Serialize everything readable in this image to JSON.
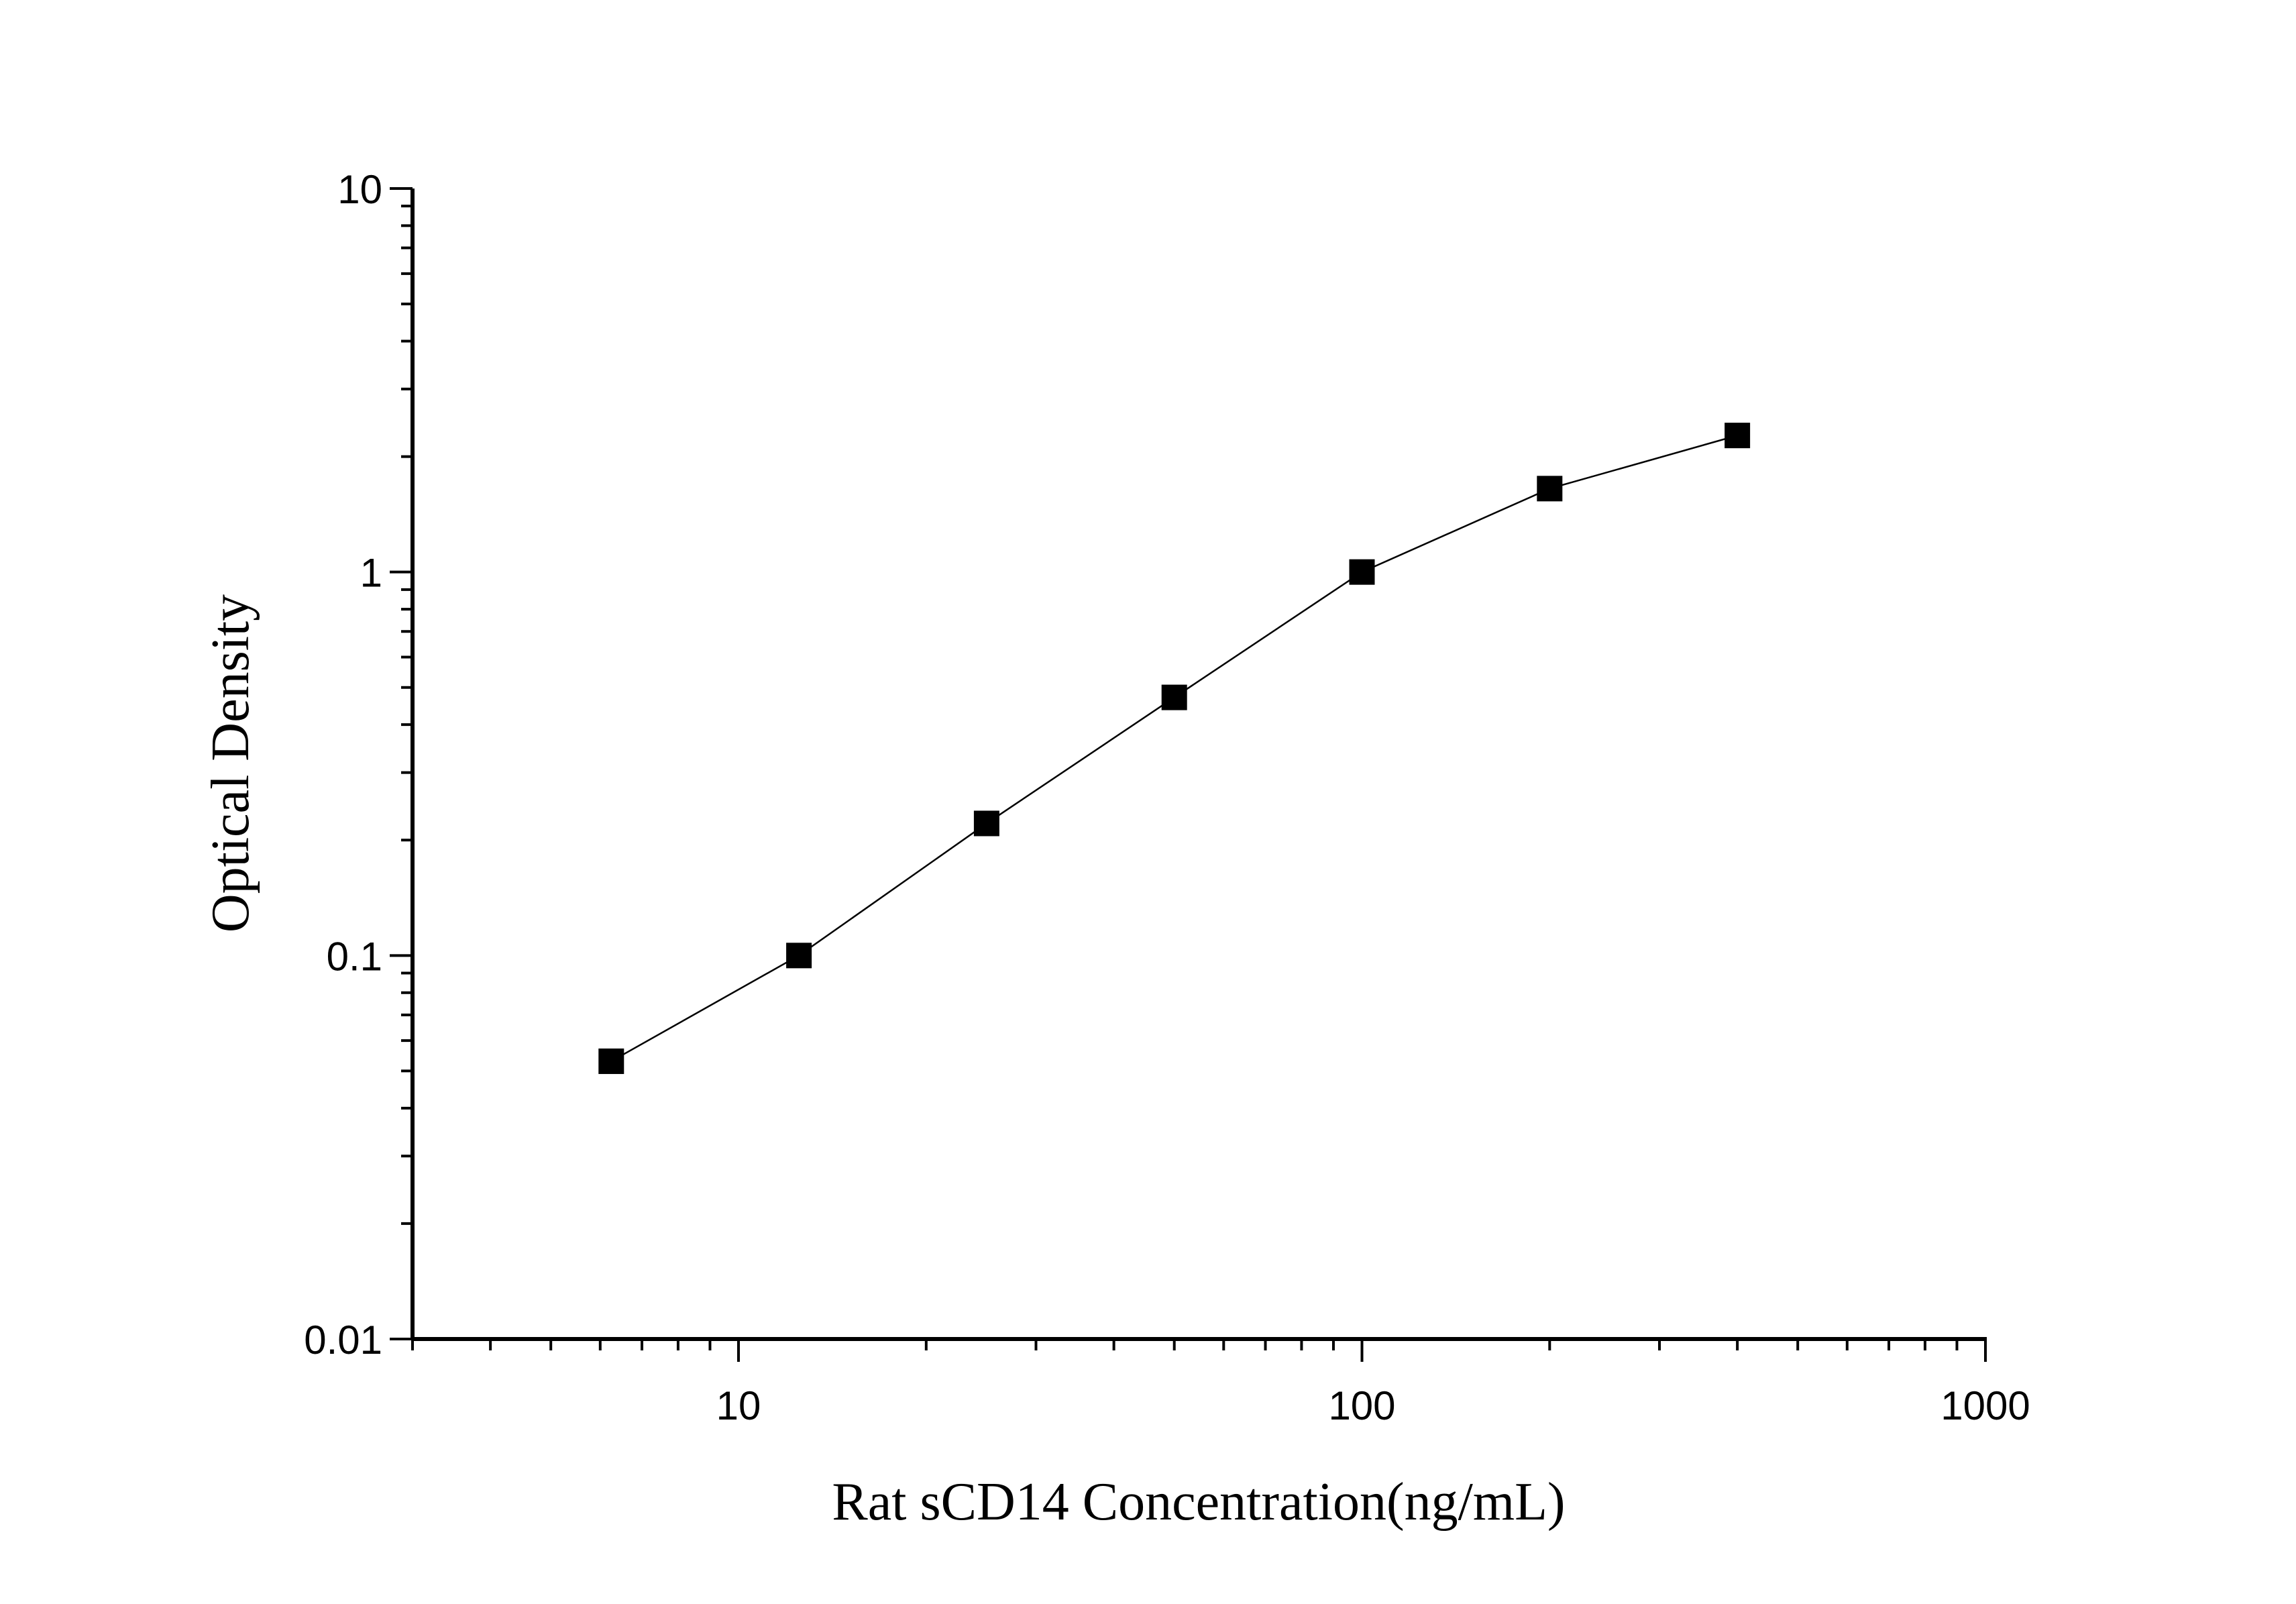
{
  "chart_data": {
    "type": "line",
    "title": "",
    "xlabel": "Rat sCD14 Concentration(ng/mL)",
    "ylabel": "Optical Density",
    "x_scale": "log",
    "y_scale": "log",
    "xlim": [
      3,
      1000
    ],
    "ylim": [
      0.01,
      10
    ],
    "x_ticks": [
      "10",
      "100",
      "1000"
    ],
    "y_ticks": [
      "0.01",
      "0.1",
      "1",
      "10"
    ],
    "grid": false,
    "marker": "square",
    "color": "#000000",
    "series": [
      {
        "x": [
          6.25,
          12.5,
          25,
          50,
          100,
          200,
          400
        ],
        "y": [
          0.053,
          0.1,
          0.221,
          0.471,
          1.0,
          1.65,
          2.27
        ]
      }
    ]
  }
}
